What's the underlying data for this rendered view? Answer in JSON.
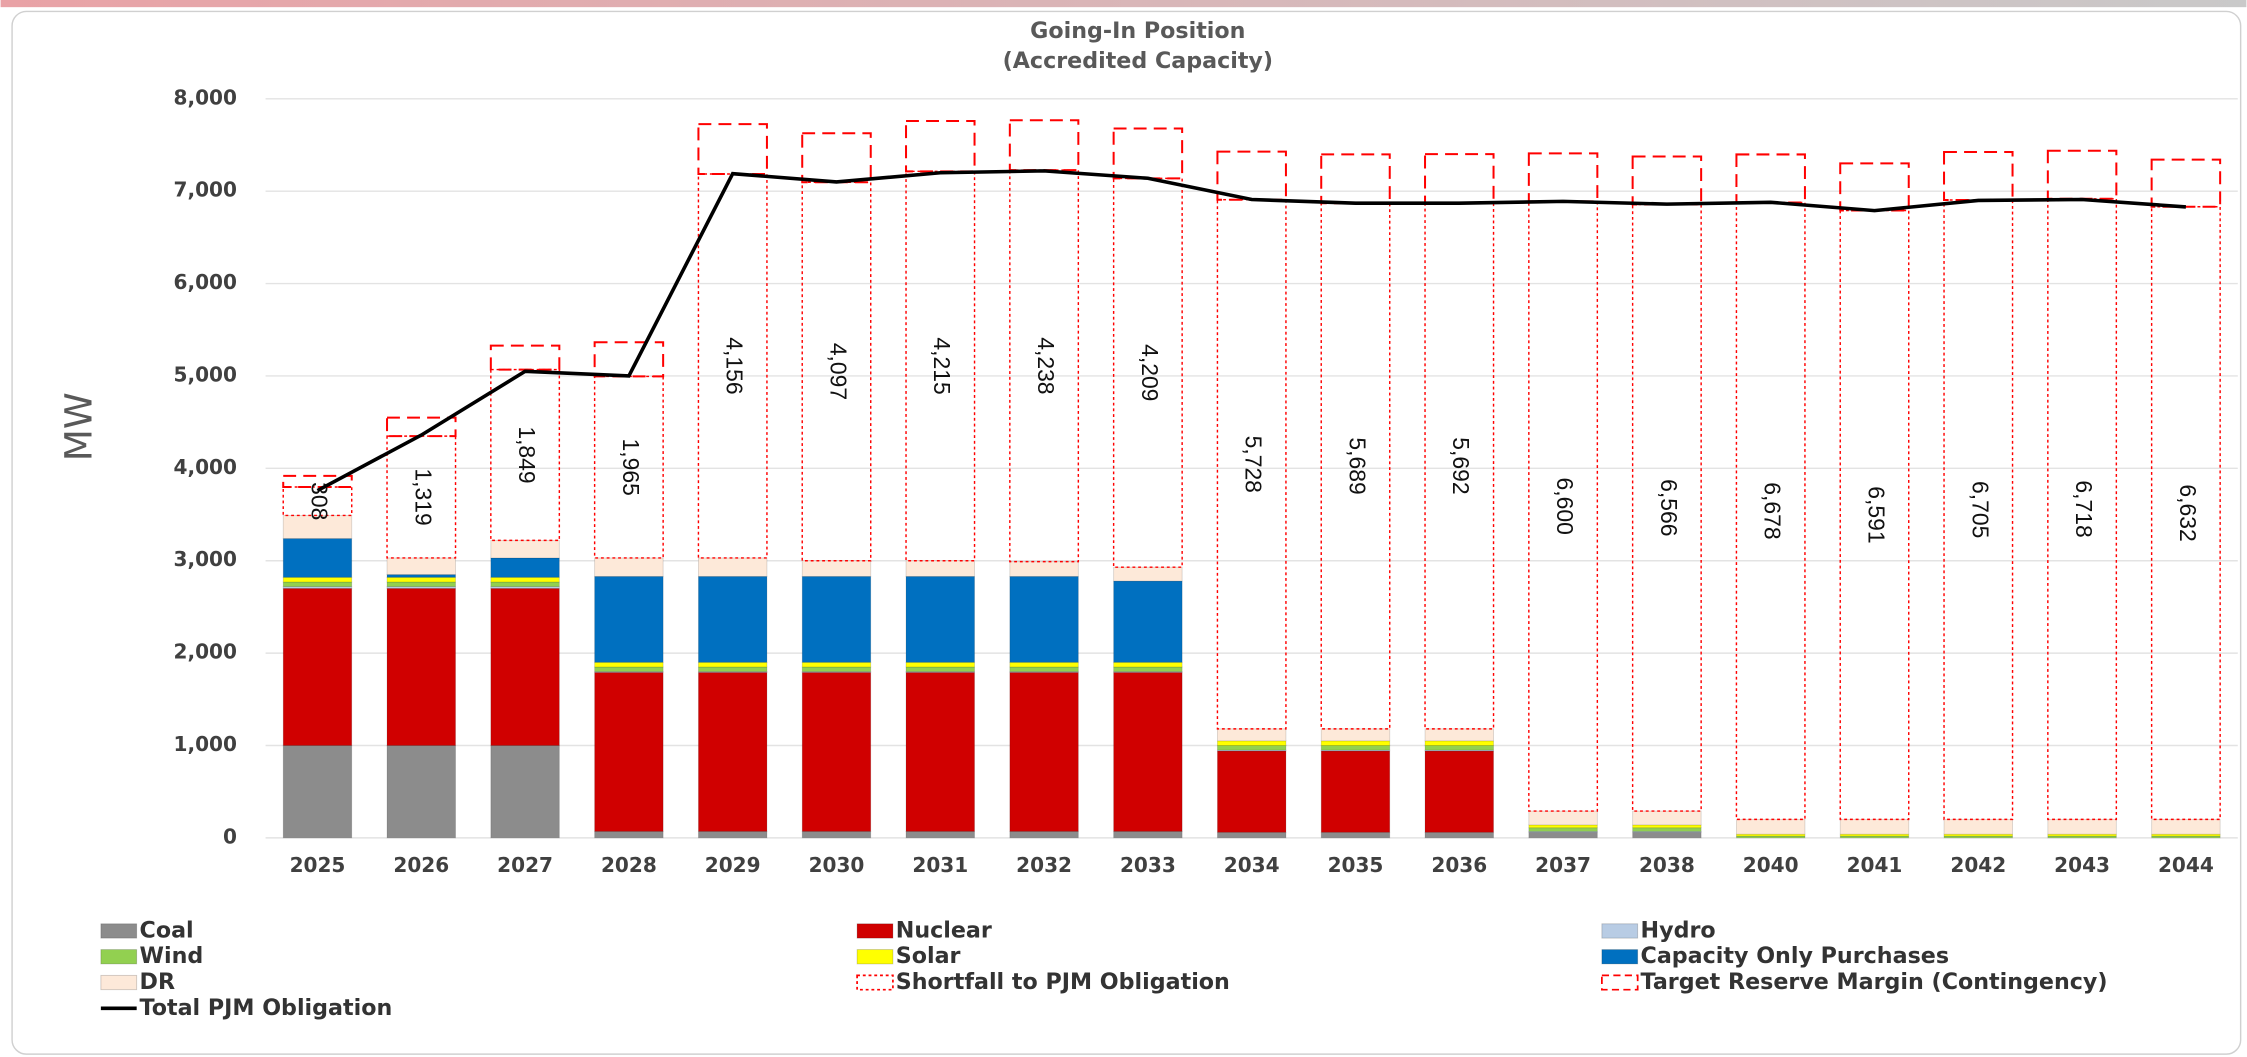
{
  "chart_data": {
    "type": "bar",
    "stacked": true,
    "title": "Going-In Position",
    "subtitle": "(Accredited Capacity)",
    "y_label": "MW",
    "categories": [
      "2025",
      "2026",
      "2027",
      "2028",
      "2029",
      "2030",
      "2031",
      "2032",
      "2033",
      "2034",
      "2035",
      "2036",
      "2037",
      "2038",
      "2040",
      "2041",
      "2042",
      "2043",
      "2044"
    ],
    "ylim": [
      0,
      8000
    ],
    "yticks": [
      0,
      {
        "value": 1000,
        "label": "1,000"
      },
      {
        "value": 2000,
        "label": "2,000"
      },
      {
        "value": 3000,
        "label": "3,000"
      },
      {
        "value": 4000,
        "label": "4,000"
      },
      {
        "value": 5000,
        "label": "5,000"
      },
      {
        "value": 6000,
        "label": "6,000"
      },
      {
        "value": 7000,
        "label": "7,000"
      },
      {
        "value": 8000,
        "label": "8,000"
      }
    ],
    "grid": true,
    "legend": "bottom",
    "series": [
      {
        "name": "Coal",
        "color": "#8c8c8c",
        "values": [
          1000,
          1000,
          1000,
          70,
          70,
          70,
          70,
          70,
          70,
          60,
          60,
          60,
          60,
          60,
          0,
          0,
          0,
          0,
          0
        ]
      },
      {
        "name": "Nuclear",
        "color": "#d00000",
        "values": [
          1700,
          1700,
          1700,
          1720,
          1720,
          1720,
          1720,
          1720,
          1720,
          880,
          880,
          880,
          0,
          0,
          0,
          0,
          0,
          0,
          0
        ]
      },
      {
        "name": "Hydro",
        "color": "#b8cce4",
        "values": [
          20,
          20,
          20,
          10,
          10,
          10,
          10,
          10,
          10,
          10,
          10,
          10,
          10,
          10,
          0,
          0,
          0,
          0,
          0
        ]
      },
      {
        "name": "Wind",
        "color": "#92d050",
        "values": [
          50,
          50,
          50,
          50,
          50,
          50,
          50,
          50,
          50,
          50,
          50,
          50,
          40,
          40,
          20,
          20,
          20,
          20,
          20
        ]
      },
      {
        "name": "Solar",
        "color": "#ffff00",
        "values": [
          50,
          50,
          50,
          50,
          50,
          50,
          50,
          50,
          50,
          50,
          50,
          50,
          30,
          30,
          20,
          20,
          20,
          20,
          20
        ]
      },
      {
        "name": "Capacity Only Purchases",
        "color": "#0070c0",
        "values": [
          420,
          30,
          210,
          930,
          930,
          930,
          930,
          930,
          880,
          0,
          0,
          0,
          0,
          0,
          0,
          0,
          0,
          0,
          0
        ]
      },
      {
        "name": "DR",
        "color": "#fde9d9",
        "values": [
          250,
          180,
          190,
          200,
          200,
          170,
          170,
          160,
          150,
          130,
          130,
          130,
          150,
          150,
          160,
          160,
          160,
          160,
          160
        ]
      },
      {
        "name": "Shortfall to PJM Obligation",
        "color": "#ff0000",
        "fill": "none",
        "border": "dotted",
        "values": [
          308,
          1319,
          1849,
          1965,
          4156,
          4097,
          4215,
          4238,
          4209,
          5728,
          5689,
          5692,
          6600,
          6566,
          6678,
          6591,
          6705,
          6718,
          6632
        ],
        "value_labels": [
          "308",
          "1,319",
          "1,849",
          "1,965",
          "4,156",
          "4,097",
          "4,215",
          "4,238",
          "4,209",
          "5,728",
          "5,689",
          "5,692",
          "6,600",
          "6,566",
          "6,678",
          "6,591",
          "6,705",
          "6,718",
          "6,632"
        ]
      },
      {
        "name": "Target Reserve Margin (Contingency)",
        "color": "#ff0000",
        "fill": "none",
        "border": "dashed",
        "values": [
          120,
          200,
          260,
          370,
          540,
          530,
          545,
          540,
          540,
          520,
          530,
          530,
          520,
          520,
          520,
          510,
          520,
          520,
          510
        ]
      },
      {
        "name": "Total PJM Obligation",
        "type": "line",
        "color": "#000000",
        "values": [
          3760,
          4360,
          5050,
          5000,
          7190,
          7100,
          7200,
          7220,
          7140,
          6910,
          6870,
          6870,
          6890,
          6860,
          6880,
          6790,
          6900,
          6910,
          6830
        ]
      }
    ]
  }
}
